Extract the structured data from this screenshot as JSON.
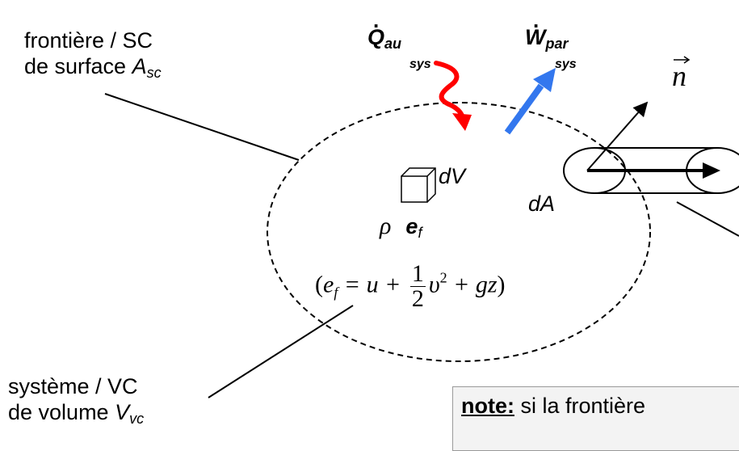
{
  "labels": {
    "boundary_line1": "frontière / SC",
    "boundary_line2_prefix": "de surface ",
    "boundary_symbol": "A",
    "boundary_sub": "sc",
    "system_line1": "système / VC",
    "system_line2_prefix": "de volume ",
    "system_symbol": "V",
    "system_sub": "vc",
    "heat_symbol": "Q",
    "heat_sub": "au",
    "heat_sys": "sys",
    "work_symbol": "W",
    "work_sub": "par",
    "work_sys": "sys",
    "normal_vector": "n",
    "volume_element": "dV",
    "area_element": "dA",
    "density": "ρ",
    "energy_symbol": "e",
    "energy_sub": "f"
  },
  "equation": {
    "open": "(",
    "lhs": "e",
    "lhs_sub": "f",
    "eq": " = u + ",
    "num": "1",
    "den": "2",
    "rest_v": "υ",
    "rest_sup": "2",
    "rest_tail": " + gz",
    "close": ")"
  },
  "note": {
    "keyword": "note:",
    "text": " si la frontière"
  },
  "colors": {
    "heat_arrow": "#ff0000",
    "work_arrow": "#3377ee"
  }
}
